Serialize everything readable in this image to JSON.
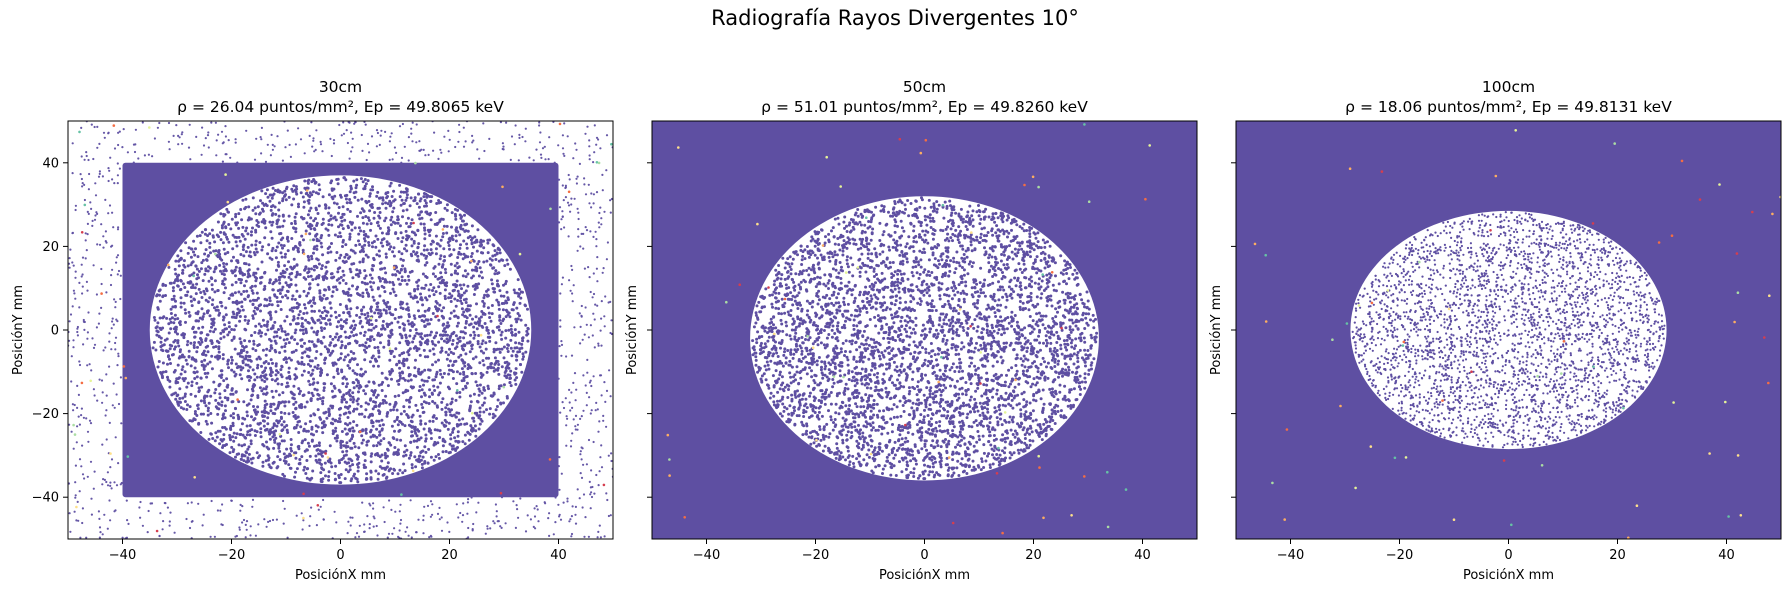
{
  "figure": {
    "title": "Radiografía Rayos Divergentes 10°"
  },
  "colors": {
    "fill": "#5e4fa2",
    "points": "#5e4fa2",
    "accents": [
      "#d53e4f",
      "#f46d43",
      "#fdae61",
      "#fee08b",
      "#e6f598",
      "#abdda4",
      "#66c2a5"
    ]
  },
  "chart_data": [
    {
      "type": "scatter",
      "title_line1": "30cm",
      "title_line2": "ρ = 26.04 puntos/mm², Ep = 49.8065 keV",
      "xlabel": "PosiciónX mm",
      "ylabel": "PosiciónY mm",
      "xlim": [
        -50,
        50
      ],
      "ylim": [
        -50,
        50
      ],
      "xticks": [
        -40,
        -20,
        0,
        20,
        40
      ],
      "yticks": [
        -40,
        -20,
        0,
        20,
        40
      ],
      "show_ytick_labels": true,
      "dense_region": {
        "shape": "square",
        "x": [
          -40,
          40
        ],
        "y": [
          -40,
          40
        ]
      },
      "hole": {
        "shape": "ellipse",
        "cx": 0,
        "cy": 0,
        "rx": 35,
        "ry": 37
      },
      "outer_density": "sparse",
      "hole_density": "medium"
    },
    {
      "type": "scatter",
      "title_line1": "50cm",
      "title_line2": "ρ = 51.01 puntos/mm², Ep = 49.8260 keV",
      "xlabel": "PosiciónX mm",
      "ylabel": "PosiciónY mm",
      "xlim": [
        -50,
        50
      ],
      "ylim": [
        -50,
        50
      ],
      "xticks": [
        -40,
        -20,
        0,
        20,
        40
      ],
      "yticks": [
        -40,
        -20,
        0,
        20,
        40
      ],
      "show_ytick_labels": false,
      "dense_region": {
        "shape": "full",
        "x": [
          -50,
          50
        ],
        "y": [
          -50,
          50
        ]
      },
      "hole": {
        "shape": "ellipse",
        "cx": 0,
        "cy": -2,
        "rx": 32,
        "ry": 34
      },
      "hole_density": "medium"
    },
    {
      "type": "scatter",
      "title_line1": "100cm",
      "title_line2": "ρ = 18.06 puntos/mm², Ep = 49.8131 keV",
      "xlabel": "PosiciónX mm",
      "ylabel": "PosiciónY mm",
      "xlim": [
        -50,
        50
      ],
      "ylim": [
        -50,
        50
      ],
      "xticks": [
        -40,
        -20,
        0,
        20,
        40
      ],
      "yticks": [
        -40,
        -20,
        0,
        20,
        40
      ],
      "show_ytick_labels": false,
      "dense_region": {
        "shape": "full",
        "x": [
          -50,
          50
        ],
        "y": [
          -50,
          50
        ]
      },
      "hole": {
        "shape": "ellipse",
        "cx": 0,
        "cy": 0,
        "rx": 29,
        "ry": 28.5
      },
      "hole_density": "sparse"
    }
  ]
}
